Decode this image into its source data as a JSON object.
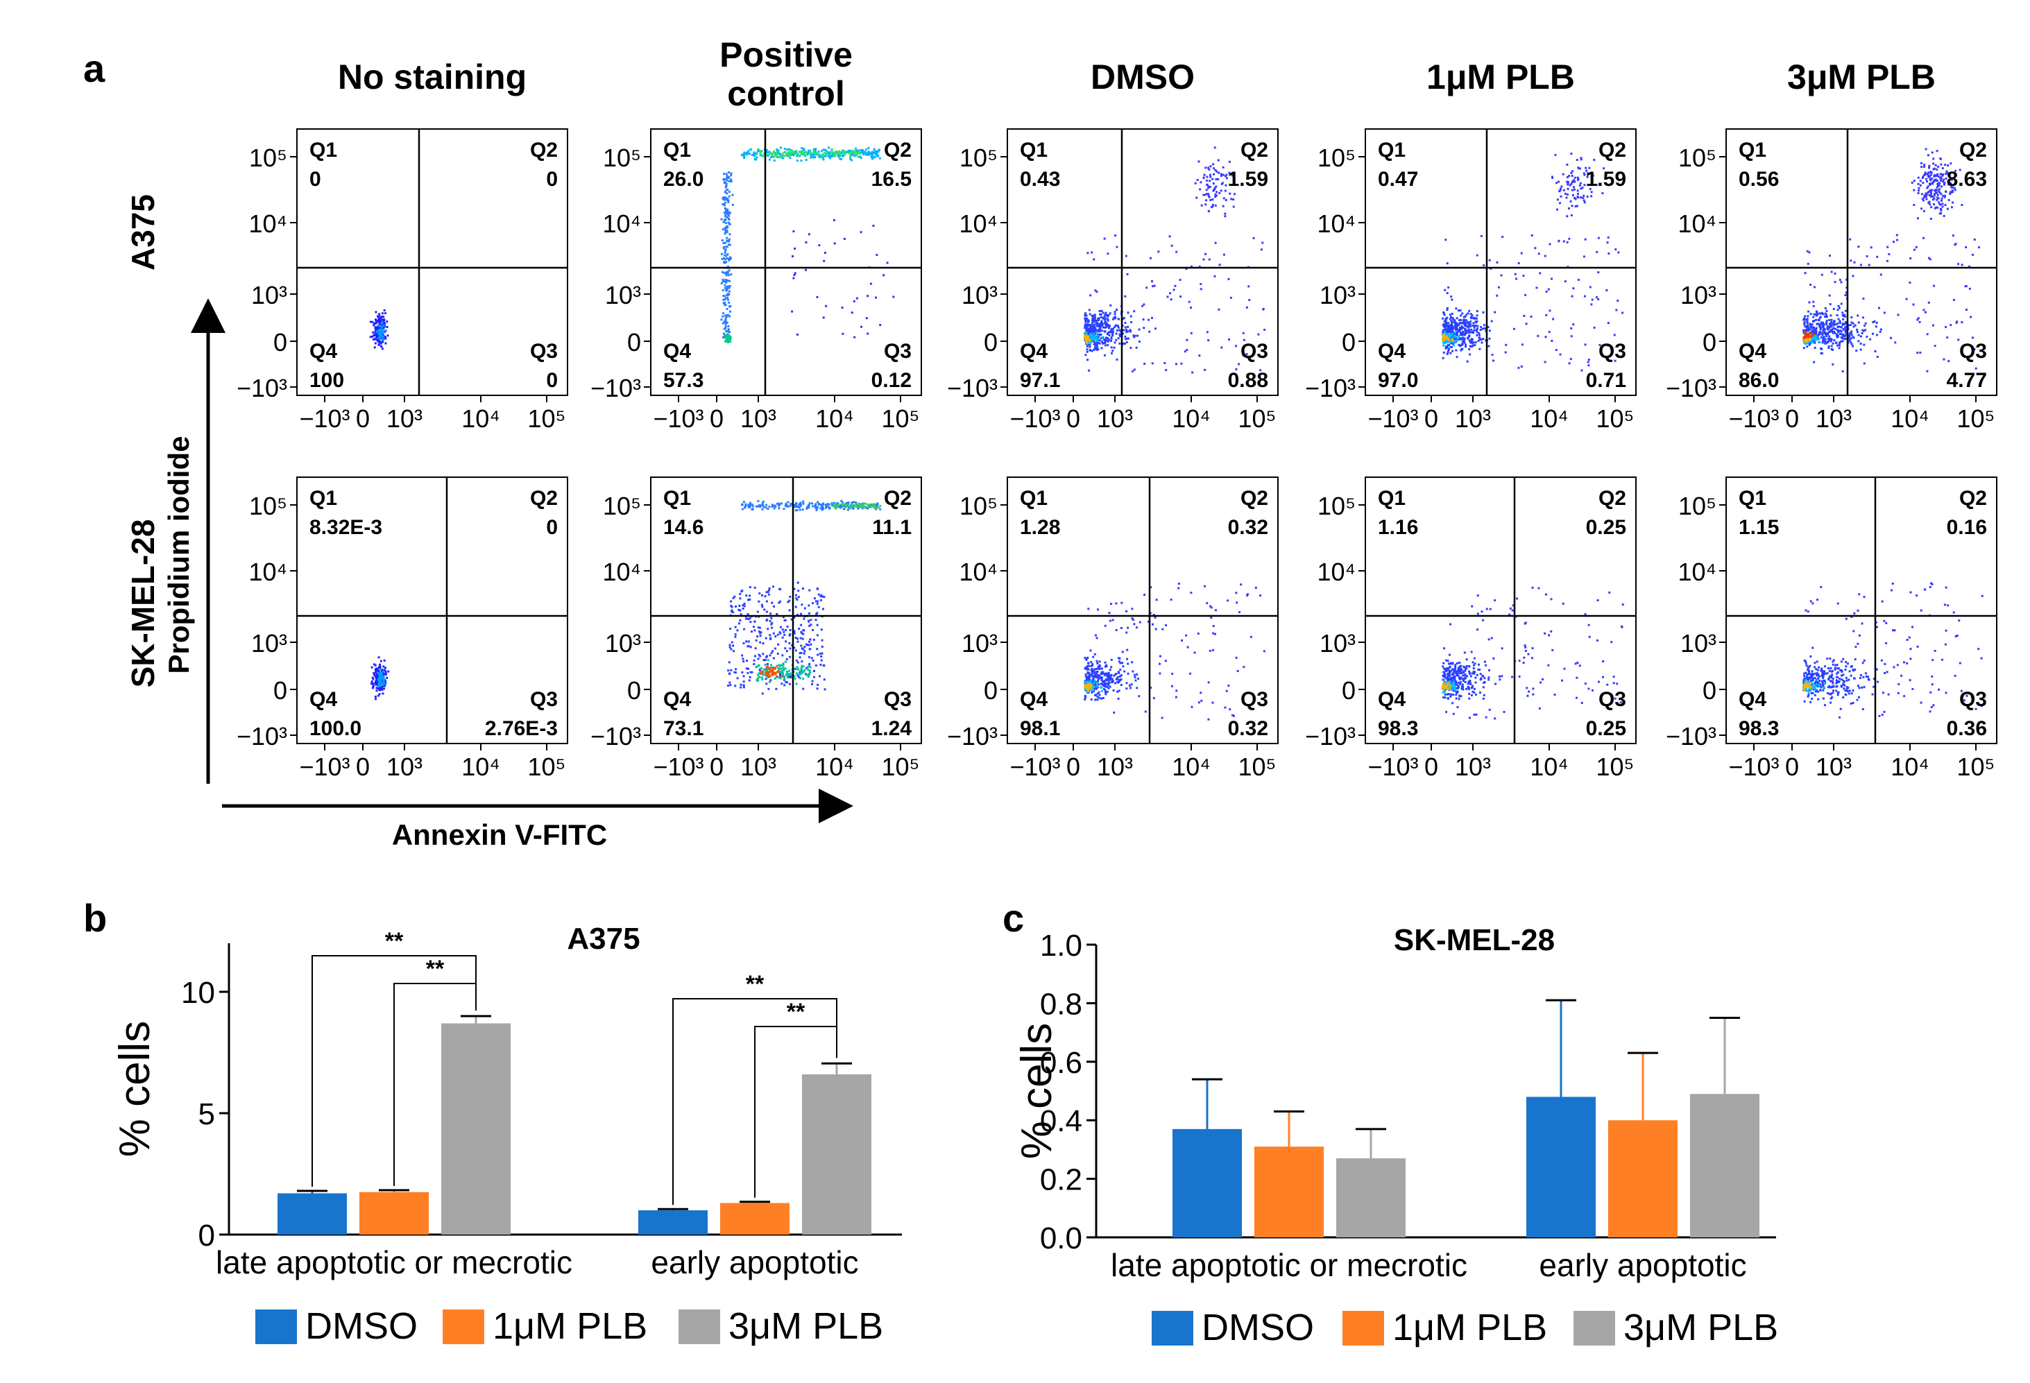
{
  "colors": {
    "dmso": "#1874CD",
    "plb1": "#FF7F24",
    "plb3": "#A6A6A6",
    "axis": "#000000",
    "density_low": "#1a1aff"
  },
  "panel_a": {
    "label": "a",
    "columns": [
      {
        "title": [
          "No staining"
        ]
      },
      {
        "title": [
          "Positive",
          "control"
        ]
      },
      {
        "title": [
          "DMSO"
        ]
      },
      {
        "title": [
          "1μM PLB"
        ]
      },
      {
        "title": [
          "3μM PLB"
        ]
      }
    ],
    "rows": [
      {
        "label": "A375"
      },
      {
        "label": "SK-MEL-28"
      }
    ],
    "y_axis_label": "Propidium iodide",
    "x_axis_label": "Annexin V-FITC",
    "y_ticks": [
      "10⁵",
      "10⁴",
      "10³",
      "0",
      "−10³"
    ],
    "x_ticks": [
      "−10³",
      "0",
      "10³",
      "10⁴",
      "10⁵"
    ],
    "plots": [
      [
        {
          "q1": {
            "name": "Q1",
            "value": "0"
          },
          "q2": {
            "name": "Q2",
            "value": "0"
          },
          "q3": {
            "name": "Q3",
            "value": "0"
          },
          "q4": {
            "name": "Q4",
            "value": "100"
          }
        },
        {
          "q1": {
            "name": "Q1",
            "value": "26.0"
          },
          "q2": {
            "name": "Q2",
            "value": "16.5"
          },
          "q3": {
            "name": "Q3",
            "value": "0.12"
          },
          "q4": {
            "name": "Q4",
            "value": "57.3"
          }
        },
        {
          "q1": {
            "name": "Q1",
            "value": "0.43"
          },
          "q2": {
            "name": "Q2",
            "value": "1.59"
          },
          "q3": {
            "name": "Q3",
            "value": "0.88"
          },
          "q4": {
            "name": "Q4",
            "value": "97.1"
          }
        },
        {
          "q1": {
            "name": "Q1",
            "value": "0.47"
          },
          "q2": {
            "name": "Q2",
            "value": "1.59"
          },
          "q3": {
            "name": "Q3",
            "value": "0.71"
          },
          "q4": {
            "name": "Q4",
            "value": "97.0"
          }
        },
        {
          "q1": {
            "name": "Q1",
            "value": "0.56"
          },
          "q2": {
            "name": "Q2",
            "value": "8.63"
          },
          "q3": {
            "name": "Q3",
            "value": "4.77"
          },
          "q4": {
            "name": "Q4",
            "value": "86.0"
          }
        }
      ],
      [
        {
          "q1": {
            "name": "Q1",
            "value": "8.32E-3"
          },
          "q2": {
            "name": "Q2",
            "value": "0"
          },
          "q3": {
            "name": "Q3",
            "value": "2.76E-3"
          },
          "q4": {
            "name": "Q4",
            "value": "100.0"
          }
        },
        {
          "q1": {
            "name": "Q1",
            "value": "14.6"
          },
          "q2": {
            "name": "Q2",
            "value": "11.1"
          },
          "q3": {
            "name": "Q3",
            "value": "1.24"
          },
          "q4": {
            "name": "Q4",
            "value": "73.1"
          }
        },
        {
          "q1": {
            "name": "Q1",
            "value": "1.28"
          },
          "q2": {
            "name": "Q2",
            "value": "0.32"
          },
          "q3": {
            "name": "Q3",
            "value": "0.32"
          },
          "q4": {
            "name": "Q4",
            "value": "98.1"
          }
        },
        {
          "q1": {
            "name": "Q1",
            "value": "1.16"
          },
          "q2": {
            "name": "Q2",
            "value": "0.25"
          },
          "q3": {
            "name": "Q3",
            "value": "0.25"
          },
          "q4": {
            "name": "Q4",
            "value": "98.3"
          }
        },
        {
          "q1": {
            "name": "Q1",
            "value": "1.15"
          },
          "q2": {
            "name": "Q2",
            "value": "0.16"
          },
          "q3": {
            "name": "Q3",
            "value": "0.36"
          },
          "q4": {
            "name": "Q4",
            "value": "98.3"
          }
        }
      ]
    ]
  },
  "chart_data": [
    {
      "panel": "b",
      "type": "bar",
      "title": "A375",
      "xlabel": "",
      "ylabel": "% cells",
      "ylim": [
        0,
        12
      ],
      "yticks": [
        0,
        5,
        10
      ],
      "ytick_labels": [
        "0",
        "5",
        "10"
      ],
      "categories": [
        "late apoptotic or mecrotic",
        "early apoptotic"
      ],
      "series": [
        {
          "name": "DMSO",
          "values": [
            1.7,
            1.0
          ],
          "errors": [
            0.1,
            0.05
          ]
        },
        {
          "name": "1μM PLB",
          "values": [
            1.75,
            1.3
          ],
          "errors": [
            0.08,
            0.05
          ]
        },
        {
          "name": "3μM PLB",
          "values": [
            8.7,
            6.6
          ],
          "errors": [
            0.3,
            0.45
          ]
        }
      ],
      "significance": [
        {
          "category": 0,
          "from": 0,
          "to": 2,
          "label": "**"
        },
        {
          "category": 0,
          "from": 1,
          "to": 2,
          "label": "**"
        },
        {
          "category": 1,
          "from": 0,
          "to": 2,
          "label": "**"
        },
        {
          "category": 1,
          "from": 1,
          "to": 2,
          "label": "**"
        }
      ],
      "legend": "bottom"
    },
    {
      "panel": "c",
      "type": "bar",
      "title": "SK-MEL-28",
      "xlabel": "",
      "ylabel": "% cells",
      "ylim": [
        0,
        1.0
      ],
      "yticks": [
        0,
        0.2,
        0.4,
        0.6,
        0.8,
        1.0
      ],
      "ytick_labels": [
        "0.0",
        "0.2",
        "0.4",
        "0.6",
        "0.8",
        "1.0"
      ],
      "categories": [
        "late apoptotic or mecrotic",
        "early apoptotic"
      ],
      "series": [
        {
          "name": "DMSO",
          "values": [
            0.37,
            0.48
          ],
          "errors": [
            0.17,
            0.33
          ]
        },
        {
          "name": "1μM PLB",
          "values": [
            0.31,
            0.4
          ],
          "errors": [
            0.12,
            0.23
          ]
        },
        {
          "name": "3μM PLB",
          "values": [
            0.27,
            0.49
          ],
          "errors": [
            0.1,
            0.26
          ]
        }
      ],
      "legend": "bottom"
    }
  ]
}
